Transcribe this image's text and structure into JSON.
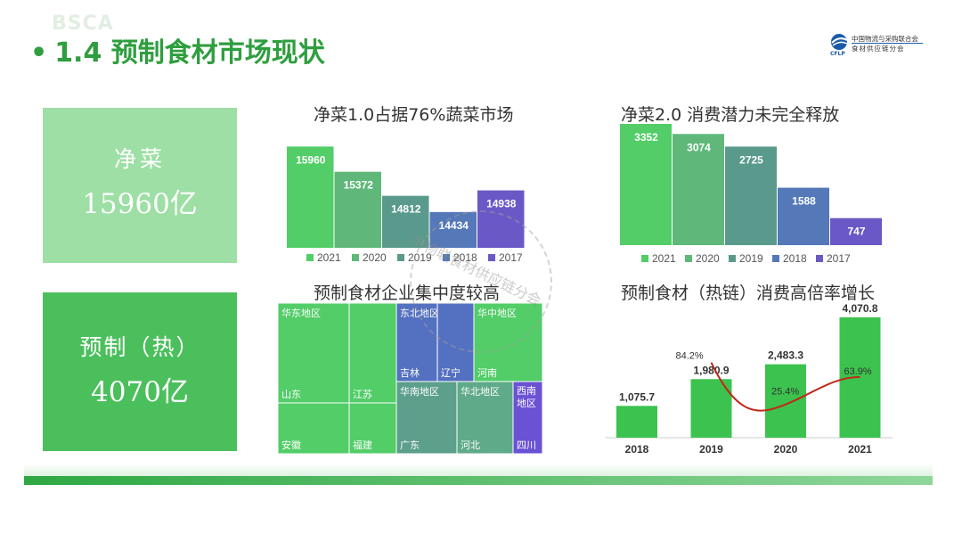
{
  "header": {
    "watermark": "BSCA",
    "bullet": "•",
    "title": "1.4 预制食材市场现状",
    "logo_line1": "中国物流与采购联合会",
    "logo_line2": "食材供应链分会",
    "logo_line3": "CFLP"
  },
  "kpis": [
    {
      "label": "净菜",
      "value": "15960亿",
      "color": "#9ddfa4"
    },
    {
      "label": "预制（热）",
      "value": "4070亿",
      "color": "#4cbf5d"
    }
  ],
  "stamp_text": "中物联食材供应链分会",
  "colors": {
    "c2021": "#52cd68",
    "c2020": "#5fb87a",
    "c2019": "#5a9a8c",
    "c2018": "#5478b8",
    "c2017": "#6a58c6",
    "growth_line": "#c02818",
    "growth_bar": "#3cc24e"
  },
  "chart_data": [
    {
      "type": "bar",
      "title": "净菜1.0占据76%蔬菜市场",
      "series": [
        {
          "name": "2021",
          "value": 15960
        },
        {
          "name": "2020",
          "value": 15372
        },
        {
          "name": "2019",
          "value": 14812
        },
        {
          "name": "2018",
          "value": 14434
        },
        {
          "name": "2017",
          "value": 14938
        }
      ],
      "ylim": [
        13600,
        16300
      ],
      "legend": "bottom",
      "labels": [
        "15960",
        "15372",
        "14812",
        "14434",
        "14938"
      ]
    },
    {
      "type": "bar",
      "title": "净菜2.0 消费潜力未完全释放",
      "series": [
        {
          "name": "2021",
          "value": 3352
        },
        {
          "name": "2020",
          "value": 3074
        },
        {
          "name": "2019",
          "value": 2725
        },
        {
          "name": "2018",
          "value": 1588
        },
        {
          "name": "2017",
          "value": 747
        }
      ],
      "ylim": [
        0,
        3352
      ],
      "legend": "bottom",
      "labels": [
        "3352",
        "3074",
        "2725",
        "1588",
        "747"
      ]
    },
    {
      "type": "treemap",
      "title": "预制食材企业集中度较高",
      "groups": [
        {
          "name": "华东地区",
          "children": [
            "山东",
            "江苏",
            "安徽",
            "福建"
          ]
        },
        {
          "name": "东北地区",
          "children": [
            "吉林",
            "辽宁"
          ]
        },
        {
          "name": "华中地区",
          "children": [
            "河南"
          ]
        },
        {
          "name": "华南地区",
          "children": [
            "广东"
          ]
        },
        {
          "name": "华北地区",
          "children": [
            "河北"
          ]
        },
        {
          "name": "西南地区",
          "children": [
            "四川"
          ]
        }
      ]
    },
    {
      "type": "bar",
      "title": "预制食材（热链）消费高倍率增长",
      "categories": [
        "2018",
        "2019",
        "2020",
        "2021"
      ],
      "values": [
        1075.7,
        1980.9,
        2483.3,
        4070.8
      ],
      "value_labels": [
        "1,075.7",
        "1,980.9",
        "2,483.3",
        "4,070.8"
      ],
      "growth": [
        null,
        84.2,
        25.4,
        63.9
      ],
      "growth_labels": [
        "",
        "84.2%",
        "25.4%",
        "63.9%"
      ],
      "ylim": [
        0,
        4100
      ]
    }
  ]
}
